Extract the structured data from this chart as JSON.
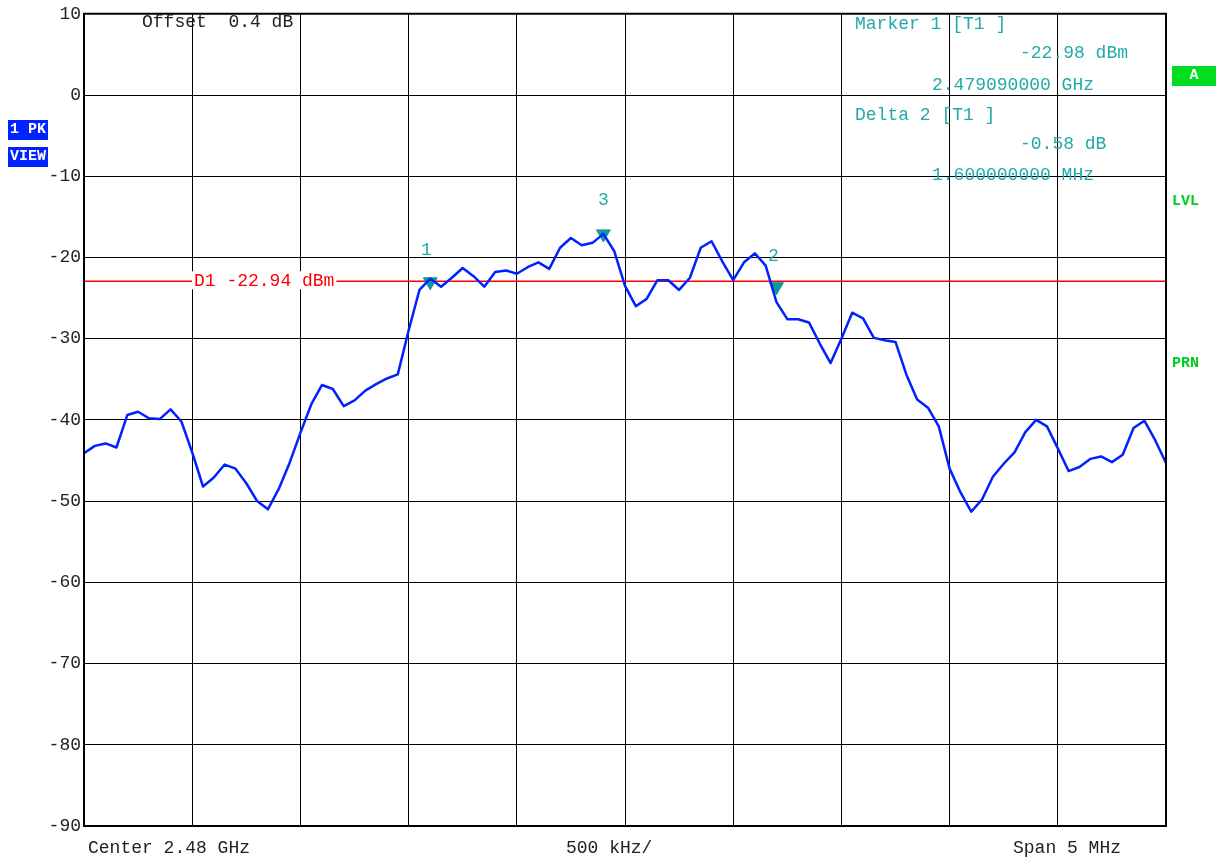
{
  "chart_data": {
    "type": "line",
    "categories": [
      null,
      null,
      null,
      null,
      null,
      null,
      null,
      null,
      null,
      null,
      null,
      null,
      null,
      null,
      null,
      null,
      null,
      null,
      null,
      null,
      null,
      null,
      null,
      null,
      null,
      null,
      null,
      null,
      null,
      null,
      null,
      null,
      null,
      null,
      null,
      null,
      null,
      null,
      null,
      null,
      null,
      null,
      null,
      null,
      null,
      null,
      null,
      null,
      null,
      null,
      null,
      null,
      null,
      null,
      null,
      null,
      null,
      null,
      null,
      null,
      null,
      null,
      null,
      null,
      null,
      null,
      null,
      null,
      null,
      null,
      null,
      null,
      null,
      null,
      null,
      null,
      null,
      null,
      null,
      null,
      null,
      null,
      null,
      null,
      null,
      null,
      null,
      null,
      null,
      null,
      null,
      null,
      null,
      null,
      null,
      null,
      null,
      null,
      null,
      null,
      null
    ],
    "ylim": [
      -90,
      10
    ],
    "yticks": [
      10,
      0,
      -10,
      -20,
      -30,
      -40,
      -50,
      -60,
      -70,
      -80,
      -90
    ],
    "grid": true,
    "series": [
      {
        "color": "#0022ff",
        "marker": "none",
        "values": [
          -44.1,
          -43.2,
          -42.9,
          -43.4,
          -39.4,
          -39.0,
          -39.8,
          -39.9,
          -38.7,
          -40.2,
          -44.0,
          -48.2,
          -47.1,
          -45.5,
          -46.0,
          -47.8,
          -50.0,
          -51.0,
          -48.5,
          -45.3,
          -41.6,
          -38.1,
          -35.7,
          -36.2,
          -38.3,
          -37.6,
          -36.4,
          -35.6,
          -34.9,
          -34.4,
          -29.0,
          -24.0,
          -22.6,
          -23.6,
          -22.5,
          -21.3,
          -22.3,
          -23.6,
          -21.8,
          -21.6,
          -22.0,
          -21.2,
          -20.6,
          -21.4,
          -18.8,
          -17.6,
          -18.5,
          -18.2,
          -17.1,
          -19.2,
          -23.5,
          -26.0,
          -25.1,
          -22.8,
          -22.8,
          -24.0,
          -22.5,
          -18.8,
          -18.0,
          -20.5,
          -22.8,
          -20.6,
          -19.5,
          -21.0,
          -25.5,
          -27.6,
          -27.6,
          -28.0,
          -30.6,
          -33.0,
          -30.0,
          -26.8,
          -27.5,
          -29.9,
          -30.2,
          -30.4,
          -34.4,
          -37.5,
          -38.5,
          -40.8,
          -46.0,
          -48.9,
          -51.3,
          -49.8,
          -47.0,
          -45.4,
          -44.0,
          -41.5,
          -40.0,
          -40.8,
          -43.5,
          -46.3,
          -45.8,
          -44.8,
          -44.5,
          -45.2,
          -44.3,
          -41.0,
          -40.1,
          -42.5,
          -45.3
        ]
      },
      {
        "type": "scatter",
        "color": "#119999",
        "marker": "triangle",
        "values": [
          null,
          null,
          null,
          null,
          null,
          null,
          null,
          null,
          null,
          null,
          null,
          null,
          null,
          null,
          null,
          null,
          null,
          null,
          null,
          null,
          null,
          null,
          null,
          null,
          null,
          null,
          null,
          null,
          null,
          null,
          null,
          null,
          -23.0,
          null,
          null,
          null,
          null,
          null,
          null,
          null,
          null,
          null,
          null,
          null,
          null,
          null,
          null,
          null,
          -17.1,
          null,
          null,
          null,
          null,
          null,
          null,
          null,
          null,
          null,
          null,
          null,
          null,
          null,
          null,
          null,
          -23.6,
          null,
          null,
          null,
          null,
          null,
          null,
          null,
          null,
          null,
          null,
          null,
          null,
          null,
          null,
          null,
          null,
          null,
          null,
          null,
          null,
          null,
          null,
          null,
          null,
          null,
          null,
          null,
          null,
          null,
          null,
          null,
          null,
          null,
          null,
          null,
          null
        ]
      }
    ],
    "ref_lines": [
      {
        "axis": "y",
        "value": -22.94,
        "label": "D1 -22.94 dBm",
        "color": "#ff0000"
      }
    ],
    "annotations": [
      "Offset  0.4 dB",
      "Marker 1 [T1 ]",
      "-22.98 dBm",
      "2.479090000 GHz",
      "Delta 2 [T1 ]",
      "-0.58 dB",
      "1.600000000 MHz",
      "Center 2.48 GHz",
      "500 kHz/",
      "Span 5 MHz",
      "1 PK",
      "VIEW",
      "A",
      "LVL",
      "PRN",
      "1",
      "3",
      "2"
    ]
  }
}
